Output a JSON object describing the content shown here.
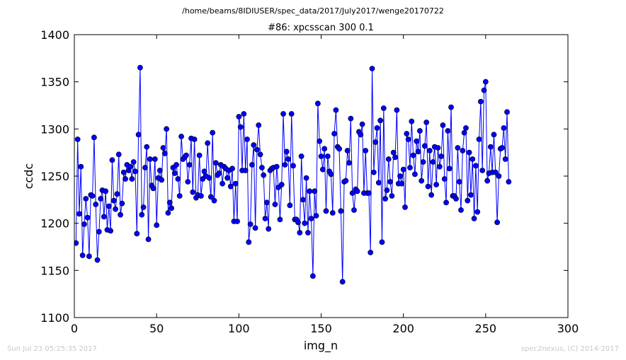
{
  "chart_data": {
    "type": "line",
    "suptitle": "/home/beams/8IDIUSER/spec_data/2017/July2017/wenge20170722",
    "title": "#86: xpcsscan 300 0.1",
    "xlabel": "img_n",
    "ylabel": "ccdc",
    "xlim": [
      0,
      300
    ],
    "ylim": [
      1100,
      1400
    ],
    "xticks": [
      0,
      50,
      100,
      150,
      200,
      250,
      300
    ],
    "yticks": [
      1100,
      1150,
      1200,
      1250,
      1300,
      1350,
      1400
    ],
    "grid": false,
    "legend": "none",
    "line_color": "#0000ff",
    "marker": "circle",
    "series": [
      {
        "x_start": 1,
        "x_step": 1,
        "values": [
          1179,
          1289,
          1210,
          1260,
          1166,
          1199,
          1226,
          1206,
          1165,
          1230,
          1229,
          1291,
          1220,
          1161,
          1191,
          1226,
          1235,
          1207,
          1234,
          1193,
          1218,
          1192,
          1267,
          1224,
          1215,
          1231,
          1273,
          1209,
          1221,
          1254,
          1247,
          1262,
          1256,
          1260,
          1247,
          1265,
          1255,
          1189,
          1294,
          1365,
          1209,
          1217,
          1259,
          1281,
          1183,
          1268,
          1240,
          1237,
          1268,
          1198,
          1248,
          1256,
          1246,
          1280,
          1274,
          1300,
          1211,
          1222,
          1216,
          1259,
          1253,
          1262,
          1247,
          1229,
          1292,
          1268,
          1270,
          1272,
          1244,
          1262,
          1290,
          1233,
          1289,
          1227,
          1230,
          1272,
          1229,
          1247,
          1255,
          1250,
          1285,
          1248,
          1228,
          1296,
          1224,
          1264,
          1251,
          1253,
          1262,
          1242,
          1260,
          1258,
          1248,
          1256,
          1239,
          1258,
          1202,
          1242,
          1202,
          1313,
          1302,
          1256,
          1316,
          1256,
          1289,
          1180,
          1199,
          1262,
          1283,
          1195,
          1278,
          1304,
          1273,
          1259,
          1251,
          1205,
          1222,
          1194,
          1256,
          1258,
          1259,
          1220,
          1260,
          1238,
          1204,
          1241,
          1316,
          1262,
          1276,
          1268,
          1219,
          1316,
          1261,
          1204,
          1204,
          1201,
          1190,
          1271,
          1225,
          1200,
          1248,
          1190,
          1234,
          1205,
          1144,
          1234,
          1208,
          1327,
          1287,
          1271,
          1257,
          1279,
          1213,
          1271,
          1255,
          1252,
          1211,
          1295,
          1320,
          1281,
          1279,
          1213,
          1138,
          1244,
          1245,
          1277,
          1264,
          1311,
          1232,
          1214,
          1236,
          1234,
          1297,
          1294,
          1305,
          1232,
          1277,
          1232,
          1232,
          1169,
          1364,
          1254,
          1286,
          1301,
          1243,
          1309,
          1180,
          1322,
          1226,
          1235,
          1268,
          1244,
          1229,
          1275,
          1270,
          1320,
          1242,
          1250,
          1242,
          1257,
          1217,
          1295,
          1289,
          1259,
          1308,
          1272,
          1252,
          1287,
          1276,
          1298,
          1245,
          1265,
          1282,
          1307,
          1239,
          1277,
          1230,
          1265,
          1281,
          1241,
          1280,
          1260,
          1271,
          1304,
          1247,
          1222,
          1298,
          1258,
          1323,
          1229,
          1229,
          1226,
          1280,
          1244,
          1214,
          1277,
          1296,
          1301,
          1224,
          1275,
          1230,
          1268,
          1205,
          1261,
          1212,
          1289,
          1329,
          1256,
          1341,
          1350,
          1245,
          1253,
          1281,
          1254,
          1294,
          1254,
          1201,
          1250,
          1279,
          1280,
          1301,
          1268,
          1318,
          1244
        ]
      }
    ]
  },
  "footer": {
    "left": "Sun Jul 23 05:25:35 2017",
    "right": "spec2nexus, (C) 2014-2017"
  }
}
